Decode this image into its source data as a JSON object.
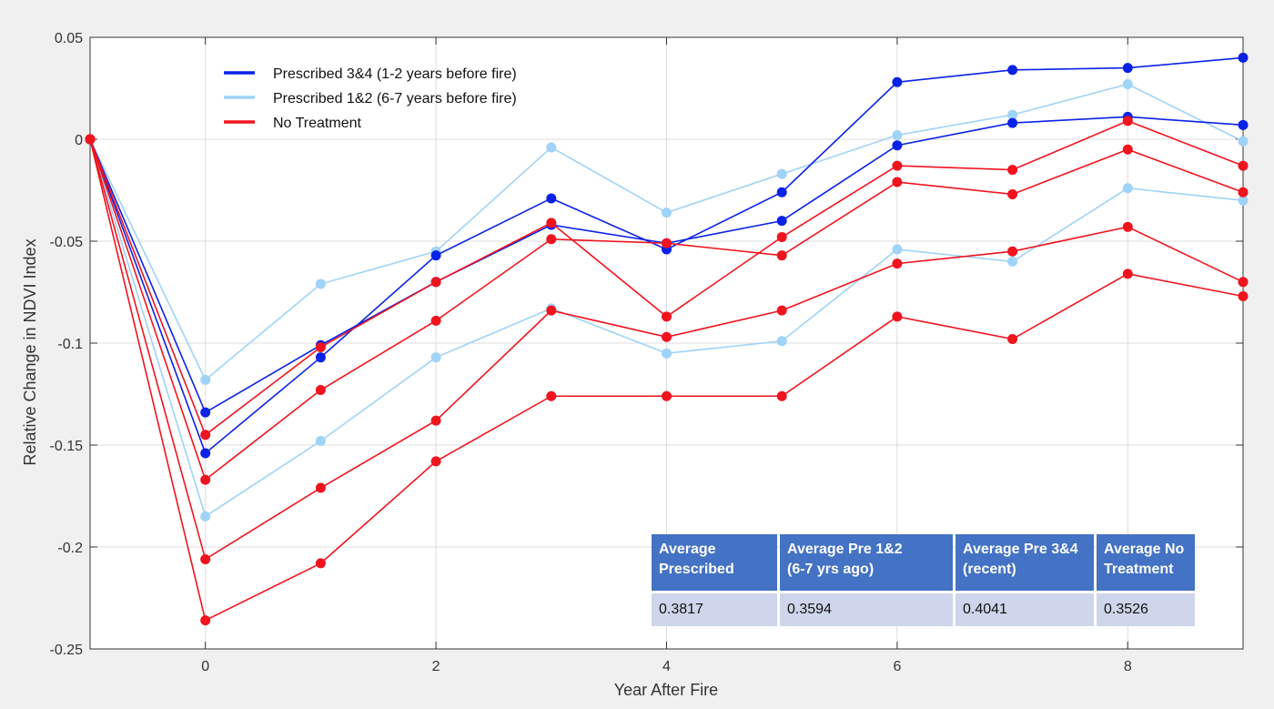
{
  "chart_data": {
    "type": "line",
    "xlabel": "Year After Fire",
    "ylabel": "Relative Change in NDVI Index",
    "xlim": [
      -1,
      9
    ],
    "ylim": [
      -0.25,
      0.05
    ],
    "x": [
      -1,
      0,
      1,
      2,
      3,
      4,
      5,
      6,
      7,
      8,
      9
    ],
    "x_ticks": [
      0,
      2,
      4,
      6,
      8
    ],
    "y_ticks": [
      {
        "value": 0.05,
        "label": "0.05"
      },
      {
        "value": 0,
        "label": "0"
      },
      {
        "value": -0.05,
        "label": "-0.05"
      },
      {
        "value": -0.1,
        "label": "-0.1"
      },
      {
        "value": -0.15,
        "label": "-0.15"
      },
      {
        "value": -0.2,
        "label": "-0.2"
      },
      {
        "value": -0.25,
        "label": "-0.25"
      }
    ],
    "grid": true,
    "legend_position": "top-left",
    "legend": [
      {
        "label": "Prescribed 3&4 (1-2 years before fire)",
        "color": "#0a22e6"
      },
      {
        "label": "Prescribed 1&2 (6-7 years before fire)",
        "color": "#9fd3f7"
      },
      {
        "label": "No Treatment",
        "color": "#f0141e"
      }
    ],
    "series": [
      {
        "group": "Prescribed 1&2 (6-7 years before fire)",
        "color": "#9fd3f7",
        "values": [
          0,
          -0.118,
          -0.071,
          -0.055,
          -0.004,
          -0.036,
          -0.017,
          0.002,
          0.012,
          0.027,
          -0.001
        ]
      },
      {
        "group": "Prescribed 1&2 (6-7 years before fire)",
        "color": "#9fd3f7",
        "values": [
          0,
          -0.185,
          -0.148,
          -0.107,
          -0.083,
          -0.105,
          -0.099,
          -0.054,
          -0.06,
          -0.024,
          -0.03
        ]
      },
      {
        "group": "Prescribed 3&4 (1-2 years before fire)",
        "color": "#0a22e6",
        "values": [
          0,
          -0.134,
          -0.101,
          -0.07,
          -0.042,
          -0.051,
          -0.04,
          -0.003,
          0.008,
          0.011,
          0.007
        ]
      },
      {
        "group": "Prescribed 3&4 (1-2 years before fire)",
        "color": "#0a22e6",
        "values": [
          0,
          -0.154,
          -0.107,
          -0.057,
          -0.029,
          -0.054,
          -0.026,
          0.028,
          0.034,
          0.035,
          0.04
        ]
      },
      {
        "group": "No Treatment",
        "color": "#f0141e",
        "values": [
          0,
          -0.145,
          -0.102,
          -0.07,
          -0.041,
          -0.087,
          -0.048,
          -0.013,
          -0.015,
          0.009,
          -0.013
        ]
      },
      {
        "group": "No Treatment",
        "color": "#f0141e",
        "values": [
          0,
          -0.167,
          -0.123,
          -0.089,
          -0.049,
          -0.051,
          -0.057,
          -0.021,
          -0.027,
          -0.005,
          -0.026
        ]
      },
      {
        "group": "No Treatment",
        "color": "#f0141e",
        "values": [
          0,
          -0.206,
          -0.171,
          -0.138,
          -0.084,
          -0.097,
          -0.084,
          -0.061,
          -0.055,
          -0.043,
          -0.07
        ]
      },
      {
        "group": "No Treatment",
        "color": "#f0141e",
        "values": [
          0,
          -0.236,
          -0.208,
          -0.158,
          -0.126,
          -0.126,
          -0.126,
          -0.087,
          -0.098,
          -0.066,
          -0.077
        ]
      }
    ]
  },
  "table": {
    "headers": [
      [
        "Average",
        "Prescribed"
      ],
      [
        "Average Pre 1&2",
        "(6-7 yrs ago)"
      ],
      [
        "Average Pre 3&4",
        "(recent)"
      ],
      [
        "Average No",
        "Treatment"
      ]
    ],
    "values": [
      "0.3817",
      "0.3594",
      "0.4041",
      "0.3526"
    ],
    "header_color": "#4472c4",
    "cell_color": "#cfd5ea"
  }
}
